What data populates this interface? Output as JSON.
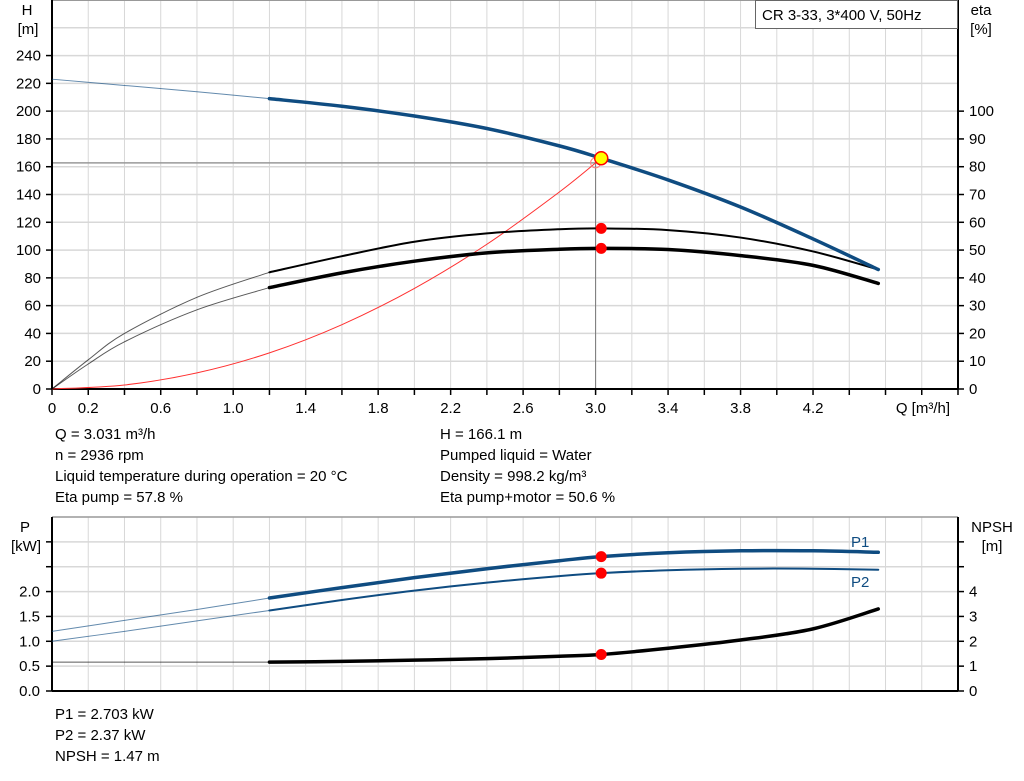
{
  "chart_data": [
    {
      "type": "line",
      "title_box": "CR 3-33, 3*400 V, 50Hz",
      "xlabel": "Q [m³/h]",
      "ylabel_left": [
        "H",
        "[m]"
      ],
      "ylabel_right": [
        "eta",
        "[%]"
      ],
      "xlim": [
        0,
        5.0
      ],
      "ylim_left": [
        0,
        280
      ],
      "ylim_right": [
        0,
        140
      ],
      "x_ticks": [
        "0",
        "0.2",
        "0.6",
        "1.0",
        "1.4",
        "1.8",
        "2.2",
        "2.6",
        "3.0",
        "3.4",
        "3.8",
        "4.2"
      ],
      "x_tick_values": [
        0,
        0.2,
        0.6,
        1.0,
        1.4,
        1.8,
        2.2,
        2.6,
        3.0,
        3.4,
        3.8,
        4.2
      ],
      "y_ticks_left": [
        0,
        20,
        40,
        60,
        80,
        100,
        120,
        140,
        160,
        180,
        200,
        220,
        240
      ],
      "y_ticks_right": [
        0,
        10,
        20,
        30,
        40,
        50,
        60,
        70,
        80,
        90,
        100
      ],
      "grid": true,
      "series": [
        {
          "key": "H",
          "axis": "left",
          "color": "#0f4c81",
          "x": [
            0,
            0.4,
            0.8,
            1.2,
            1.6,
            2.0,
            2.4,
            2.8,
            3.031,
            3.4,
            3.8,
            4.2,
            4.56
          ],
          "y": [
            223,
            218.5,
            214,
            209,
            203.5,
            196.5,
            187.5,
            175,
            166.1,
            150.5,
            131,
            108,
            86
          ]
        },
        {
          "key": "eta_pump",
          "axis": "right",
          "color": "#000000",
          "x": [
            0,
            0.2,
            0.4,
            0.8,
            1.2,
            1.6,
            2.0,
            2.4,
            2.8,
            3.031,
            3.4,
            3.8,
            4.2,
            4.56
          ],
          "y": [
            0,
            10.5,
            20,
            33,
            42,
            47.8,
            53,
            56,
            57.5,
            57.8,
            57.2,
            54.5,
            49.5,
            43
          ]
        },
        {
          "key": "eta_pump_motor",
          "axis": "right",
          "color": "#000000",
          "x": [
            0,
            0.2,
            0.4,
            0.8,
            1.2,
            1.6,
            2.0,
            2.4,
            2.8,
            3.031,
            3.4,
            3.8,
            4.2,
            4.56
          ],
          "y": [
            0,
            9,
            17,
            28.5,
            36.5,
            41.8,
            46,
            49,
            50.3,
            50.6,
            50.2,
            48,
            44.5,
            38
          ]
        },
        {
          "key": "system",
          "axis": "left",
          "color": "#ff3030",
          "x": [
            0,
            0.4,
            0.8,
            1.2,
            1.6,
            2.0,
            2.4,
            2.8,
            3.031
          ],
          "y": [
            0,
            2.9,
            11.6,
            26,
            46.3,
            72.4,
            104.2,
            141.8,
            166.1
          ]
        }
      ],
      "duty_point": {
        "Q": 3.031,
        "H": 166.1,
        "eta_pump": 57.8,
        "eta_pump_motor": 50.6
      },
      "guide_point": {
        "Q": 3.0,
        "H": 162.8
      }
    },
    {
      "type": "line",
      "ylabel_left": [
        "P",
        "[kW]"
      ],
      "ylabel_right": [
        "NPSH",
        "[m]"
      ],
      "xlim": [
        0,
        5.0
      ],
      "ylim_left": [
        0,
        3.5
      ],
      "ylim_right": [
        0,
        7
      ],
      "y_ticks_left": [
        "0.0",
        "0.5",
        "1.0",
        "1.5",
        "2.0"
      ],
      "y_tick_values_left": [
        0,
        0.5,
        1.0,
        1.5,
        2.0
      ],
      "y_ticks_right": [
        0,
        1,
        2,
        3,
        4
      ],
      "grid": true,
      "series": [
        {
          "key": "P1",
          "name": "P1",
          "axis": "left",
          "color": "#0f4c81",
          "x": [
            0,
            0.4,
            0.8,
            1.2,
            1.6,
            2.0,
            2.4,
            2.8,
            3.031,
            3.4,
            3.8,
            4.2,
            4.56
          ],
          "y": [
            1.2,
            1.42,
            1.64,
            1.87,
            2.08,
            2.28,
            2.46,
            2.62,
            2.703,
            2.78,
            2.82,
            2.82,
            2.79
          ]
        },
        {
          "key": "P2",
          "name": "P2",
          "axis": "left",
          "color": "#0f4c81",
          "x": [
            0,
            0.4,
            0.8,
            1.2,
            1.6,
            2.0,
            2.4,
            2.8,
            3.031,
            3.4,
            3.8,
            4.2,
            4.56
          ],
          "y": [
            1.0,
            1.2,
            1.41,
            1.62,
            1.83,
            2.02,
            2.18,
            2.31,
            2.37,
            2.43,
            2.46,
            2.46,
            2.44
          ]
        },
        {
          "key": "NPSH",
          "axis": "right",
          "color": "#000000",
          "x": [
            0,
            0.4,
            0.8,
            1.2,
            1.6,
            2.0,
            2.4,
            2.8,
            3.031,
            3.4,
            3.8,
            4.2,
            4.56
          ],
          "y": [
            1.16,
            1.16,
            1.16,
            1.16,
            1.19,
            1.24,
            1.3,
            1.4,
            1.47,
            1.72,
            2.05,
            2.5,
            3.3
          ]
        }
      ],
      "duty_point": {
        "Q": 3.031,
        "P1": 2.703,
        "P2": 2.37,
        "NPSH": 1.47
      }
    }
  ],
  "info_top_left": [
    "Q = 3.031 m³/h",
    "n = 2936 rpm",
    "Liquid temperature during operation = 20 °C",
    "Eta pump = 57.8 %"
  ],
  "info_top_right": [
    "H = 166.1 m",
    "Pumped liquid = Water",
    "Density = 998.2 kg/m³",
    "Eta pump+motor = 50.6 %"
  ],
  "info_bottom": [
    "P1 = 2.703 kW",
    "P2 = 2.37 kW",
    "NPSH = 1.47 m"
  ],
  "colors": {
    "head": "#0f4c81",
    "power": "#0f4c81",
    "efficiency": "#000000",
    "system": "#ff3030",
    "marker": "#ff0000",
    "duty_marker": "#ffff00",
    "grid": "#d8d8d8"
  }
}
